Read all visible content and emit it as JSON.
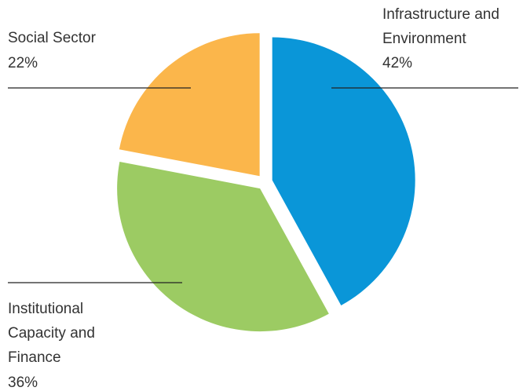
{
  "chart_data": {
    "type": "pie",
    "categories": [
      "Infrastructure and Environment",
      "Institutional Capacity and Finance",
      "Social Sector"
    ],
    "values": [
      42,
      36,
      22
    ],
    "value_labels": [
      "42%",
      "36%",
      "22%"
    ],
    "colors": [
      "#0a96d8",
      "#9ccb63",
      "#fbb64b"
    ]
  }
}
